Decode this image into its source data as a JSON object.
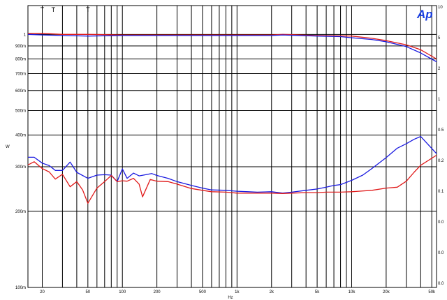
{
  "chart_data": {
    "type": "line",
    "title": "",
    "xlabel": "Hz",
    "ylabel": "W",
    "x_scale": "log",
    "y_scale": "log",
    "xlim": [
      15,
      55000
    ],
    "ylim": [
      0.1,
      1.3
    ],
    "grid": true,
    "x_ticks": [
      {
        "value": 20,
        "label": "20"
      },
      {
        "value": 50,
        "label": "50"
      },
      {
        "value": 100,
        "label": "100"
      },
      {
        "value": 200,
        "label": "200"
      },
      {
        "value": 500,
        "label": "500"
      },
      {
        "value": 1000,
        "label": "1k"
      },
      {
        "value": 2000,
        "label": "2k"
      },
      {
        "value": 5000,
        "label": "5k"
      },
      {
        "value": 10000,
        "label": "10k"
      },
      {
        "value": 20000,
        "label": "20k"
      },
      {
        "value": 50000,
        "label": "50k"
      }
    ],
    "y_ticks": [
      {
        "value": 1,
        "label": "1"
      },
      {
        "value": 0.9,
        "label": "900m"
      },
      {
        "value": 0.8,
        "label": "800m"
      },
      {
        "value": 0.7,
        "label": "700m"
      },
      {
        "value": 0.6,
        "label": "600m"
      },
      {
        "value": 0.5,
        "label": "500m"
      },
      {
        "value": 0.4,
        "label": "400m"
      },
      {
        "value": 0.3,
        "label": "300m"
      },
      {
        "value": 0.2,
        "label": "200m"
      },
      {
        "value": 0.1,
        "label": "100m"
      }
    ],
    "right_axis_labels": [
      "10",
      "5",
      "2",
      "1",
      "0.5",
      "0.2",
      "0.1",
      "0.0",
      "0.0",
      "0.0"
    ],
    "markers": [
      {
        "x": 20,
        "label": "T"
      },
      {
        "x": 25,
        "label": "T"
      },
      {
        "x": 50,
        "label": "T"
      }
    ],
    "series": [
      {
        "color": "#e01a1a",
        "points": [
          [
            15,
            1.01
          ],
          [
            20,
            1.01
          ],
          [
            30,
            1.0
          ],
          [
            50,
            1.0
          ],
          [
            100,
            0.995
          ],
          [
            200,
            0.995
          ],
          [
            500,
            0.995
          ],
          [
            1000,
            0.995
          ],
          [
            2000,
            0.995
          ],
          [
            2500,
            1.0
          ],
          [
            5000,
            0.99
          ],
          [
            10000,
            0.985
          ],
          [
            15000,
            0.965
          ],
          [
            20000,
            0.945
          ],
          [
            30000,
            0.91
          ],
          [
            40000,
            0.87
          ],
          [
            55000,
            0.8
          ]
        ]
      },
      {
        "color": "#1a1ae0",
        "points": [
          [
            15,
            1.0
          ],
          [
            20,
            0.995
          ],
          [
            30,
            0.99
          ],
          [
            50,
            0.985
          ],
          [
            100,
            0.99
          ],
          [
            200,
            0.99
          ],
          [
            500,
            0.99
          ],
          [
            1000,
            0.99
          ],
          [
            2000,
            0.99
          ],
          [
            2500,
            0.995
          ],
          [
            5000,
            0.985
          ],
          [
            8000,
            0.98
          ],
          [
            10000,
            0.97
          ],
          [
            15000,
            0.955
          ],
          [
            20000,
            0.935
          ],
          [
            30000,
            0.895
          ],
          [
            40000,
            0.845
          ],
          [
            55000,
            0.78
          ]
        ]
      },
      {
        "color": "#1a1ae0",
        "points": [
          [
            15,
            0.327
          ],
          [
            17,
            0.327
          ],
          [
            20,
            0.31
          ],
          [
            23,
            0.303
          ],
          [
            26,
            0.29
          ],
          [
            30,
            0.29
          ],
          [
            35,
            0.313
          ],
          [
            40,
            0.285
          ],
          [
            50,
            0.27
          ],
          [
            60,
            0.278
          ],
          [
            70,
            0.279
          ],
          [
            80,
            0.278
          ],
          [
            90,
            0.262
          ],
          [
            100,
            0.294
          ],
          [
            110,
            0.27
          ],
          [
            125,
            0.283
          ],
          [
            140,
            0.276
          ],
          [
            160,
            0.279
          ],
          [
            180,
            0.282
          ],
          [
            200,
            0.277
          ],
          [
            250,
            0.27
          ],
          [
            300,
            0.262
          ],
          [
            400,
            0.253
          ],
          [
            500,
            0.247
          ],
          [
            600,
            0.243
          ],
          [
            800,
            0.242
          ],
          [
            1000,
            0.24
          ],
          [
            1250,
            0.239
          ],
          [
            1500,
            0.238
          ],
          [
            2000,
            0.239
          ],
          [
            2500,
            0.236
          ],
          [
            3000,
            0.238
          ],
          [
            4000,
            0.242
          ],
          [
            5000,
            0.245
          ],
          [
            6000,
            0.249
          ],
          [
            7000,
            0.253
          ],
          [
            8000,
            0.255
          ],
          [
            10000,
            0.265
          ],
          [
            12500,
            0.278
          ],
          [
            15000,
            0.295
          ],
          [
            20000,
            0.326
          ],
          [
            25000,
            0.355
          ],
          [
            30000,
            0.37
          ],
          [
            35000,
            0.385
          ],
          [
            40000,
            0.395
          ],
          [
            55000,
            0.338
          ]
        ]
      },
      {
        "color": "#e01a1a",
        "points": [
          [
            15,
            0.305
          ],
          [
            17,
            0.314
          ],
          [
            20,
            0.295
          ],
          [
            23,
            0.286
          ],
          [
            26,
            0.268
          ],
          [
            30,
            0.28
          ],
          [
            35,
            0.25
          ],
          [
            40,
            0.262
          ],
          [
            45,
            0.243
          ],
          [
            50,
            0.215
          ],
          [
            60,
            0.247
          ],
          [
            70,
            0.262
          ],
          [
            80,
            0.277
          ],
          [
            90,
            0.262
          ],
          [
            100,
            0.264
          ],
          [
            110,
            0.263
          ],
          [
            125,
            0.27
          ],
          [
            140,
            0.256
          ],
          [
            150,
            0.228
          ],
          [
            175,
            0.267
          ],
          [
            200,
            0.263
          ],
          [
            250,
            0.262
          ],
          [
            300,
            0.256
          ],
          [
            400,
            0.246
          ],
          [
            500,
            0.242
          ],
          [
            600,
            0.239
          ],
          [
            800,
            0.238
          ],
          [
            1000,
            0.236
          ],
          [
            1250,
            0.236
          ],
          [
            1500,
            0.236
          ],
          [
            2000,
            0.236
          ],
          [
            2500,
            0.235
          ],
          [
            3000,
            0.236
          ],
          [
            4000,
            0.237
          ],
          [
            5000,
            0.237
          ],
          [
            6000,
            0.238
          ],
          [
            8000,
            0.238
          ],
          [
            10000,
            0.239
          ],
          [
            15000,
            0.242
          ],
          [
            20000,
            0.247
          ],
          [
            25000,
            0.249
          ],
          [
            30000,
            0.263
          ],
          [
            35000,
            0.285
          ],
          [
            40000,
            0.304
          ],
          [
            55000,
            0.333
          ]
        ]
      }
    ]
  },
  "logo": {
    "text": "Ap"
  }
}
